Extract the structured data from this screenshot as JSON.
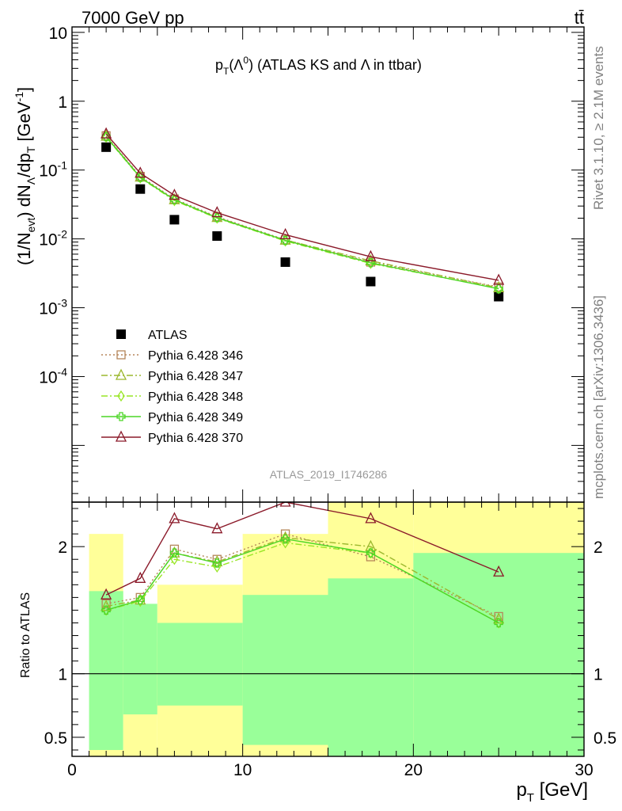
{
  "header": {
    "left": "7000 GeV pp",
    "right": "tt̄"
  },
  "side": {
    "rivet": "Rivet 3.1.10, ≥ 2.1M events",
    "mcplots": "mcplots.cern.ch [arXiv:1306.3436]"
  },
  "watermark": "ATLAS_2019_I1746286",
  "chart_data": [
    {
      "type": "line",
      "title": "p_T(Λ^0) (ATLAS KS and Λ in ttbar)",
      "ylabel": "(1/N_evt) dN_Λ/dp_T [GeV^-1]",
      "xlim": [
        0,
        30
      ],
      "ylim": [
        1.5e-06,
        12
      ],
      "yscale": "log",
      "x_ticks": [
        "0",
        "10",
        "20",
        "30"
      ],
      "y_ticks": [
        "10^-4",
        "10^-3",
        "10^-2",
        "10^-1",
        "1",
        "10"
      ],
      "legend_position": "left",
      "x": [
        2,
        4,
        6,
        8.5,
        12.5,
        17.5,
        25
      ],
      "series": [
        {
          "name": "ATLAS",
          "color": "#000000",
          "marker": "filled-square",
          "values": [
            0.215,
            0.053,
            0.019,
            0.011,
            0.0046,
            0.0024,
            0.00145
          ]
        },
        {
          "name": "Pythia 6.428 346",
          "color": "#b5865a",
          "marker": "open-square",
          "dash": "dotted",
          "values": [
            0.315,
            0.081,
            0.038,
            0.021,
            0.0097,
            0.0046,
            0.002
          ]
        },
        {
          "name": "Pythia 6.428 347",
          "color": "#9cb82e",
          "marker": "open-triangle",
          "dash": "dashdot",
          "values": [
            0.31,
            0.079,
            0.037,
            0.0205,
            0.0096,
            0.0048,
            0.00195
          ]
        },
        {
          "name": "Pythia 6.428 348",
          "color": "#99e626",
          "marker": "open-diamond",
          "dash": "dashdot",
          "values": [
            0.3,
            0.077,
            0.036,
            0.02,
            0.0093,
            0.0044,
            0.0019
          ]
        },
        {
          "name": "Pythia 6.428 349",
          "color": "#4cd626",
          "marker": "open-cross",
          "dash": "solid",
          "values": [
            0.305,
            0.078,
            0.037,
            0.0203,
            0.0095,
            0.0045,
            0.00188
          ]
        },
        {
          "name": "Pythia 6.428 370",
          "color": "#8b1a2a",
          "marker": "open-triangle",
          "dash": "solid",
          "values": [
            0.335,
            0.09,
            0.043,
            0.024,
            0.0115,
            0.0055,
            0.0025
          ]
        }
      ]
    },
    {
      "type": "line",
      "ylabel": "Ratio to ATLAS",
      "xlabel": "p_T [GeV]",
      "xlim": [
        0,
        30
      ],
      "ylim": [
        0.35,
        2.35
      ],
      "y_ticks": [
        "0.5",
        "1",
        "2"
      ],
      "reference_line": 1,
      "bands": [
        {
          "x0": 1,
          "x1": 3,
          "stat": [
            0.4,
            1.65
          ],
          "total": [
            0.32,
            2.1
          ]
        },
        {
          "x0": 3,
          "x1": 5,
          "stat": [
            0.68,
            1.55
          ],
          "total": [
            0.35,
            1.25
          ]
        },
        {
          "x0": 5,
          "x1": 10,
          "stat": [
            0.75,
            1.4
          ],
          "total": [
            0.35,
            1.7
          ]
        },
        {
          "x0": 10,
          "x1": 15,
          "stat": [
            0.44,
            1.62
          ],
          "total": [
            0.35,
            2.1
          ]
        },
        {
          "x0": 15,
          "x1": 20,
          "stat": [
            0.35,
            1.75
          ],
          "total": [
            0.35,
            2.35
          ]
        },
        {
          "x0": 20,
          "x1": 30,
          "stat": [
            0.35,
            1.95
          ],
          "total": [
            0.35,
            2.35
          ]
        }
      ],
      "band_colors": {
        "stat": "#99ff99",
        "total": "#ffff99"
      },
      "x": [
        2,
        4,
        6,
        8.5,
        12.5,
        17.5,
        25
      ],
      "series": [
        {
          "name": "Pythia 6.428 346",
          "color": "#b5865a",
          "marker": "open-square",
          "dash": "dotted",
          "values": [
            1.55,
            1.6,
            1.98,
            1.9,
            2.1,
            1.92,
            1.45
          ]
        },
        {
          "name": "Pythia 6.428 347",
          "color": "#9cb82e",
          "marker": "open-triangle",
          "dash": "dashdot",
          "values": [
            1.53,
            1.58,
            1.95,
            1.88,
            2.07,
            2.0,
            1.43
          ]
        },
        {
          "name": "Pythia 6.428 348",
          "color": "#99e626",
          "marker": "open-diamond",
          "dash": "dashdot",
          "values": [
            1.5,
            1.57,
            1.9,
            1.84,
            2.03,
            1.95,
            1.4
          ]
        },
        {
          "name": "Pythia 6.428 349",
          "color": "#4cd626",
          "marker": "open-cross",
          "dash": "solid",
          "values": [
            1.5,
            1.58,
            1.95,
            1.87,
            2.06,
            1.95,
            1.4
          ]
        },
        {
          "name": "Pythia 6.428 370",
          "color": "#8b1a2a",
          "marker": "open-triangle",
          "dash": "solid",
          "values": [
            1.62,
            1.75,
            2.22,
            2.14,
            2.35,
            2.22,
            1.8
          ]
        }
      ]
    }
  ]
}
